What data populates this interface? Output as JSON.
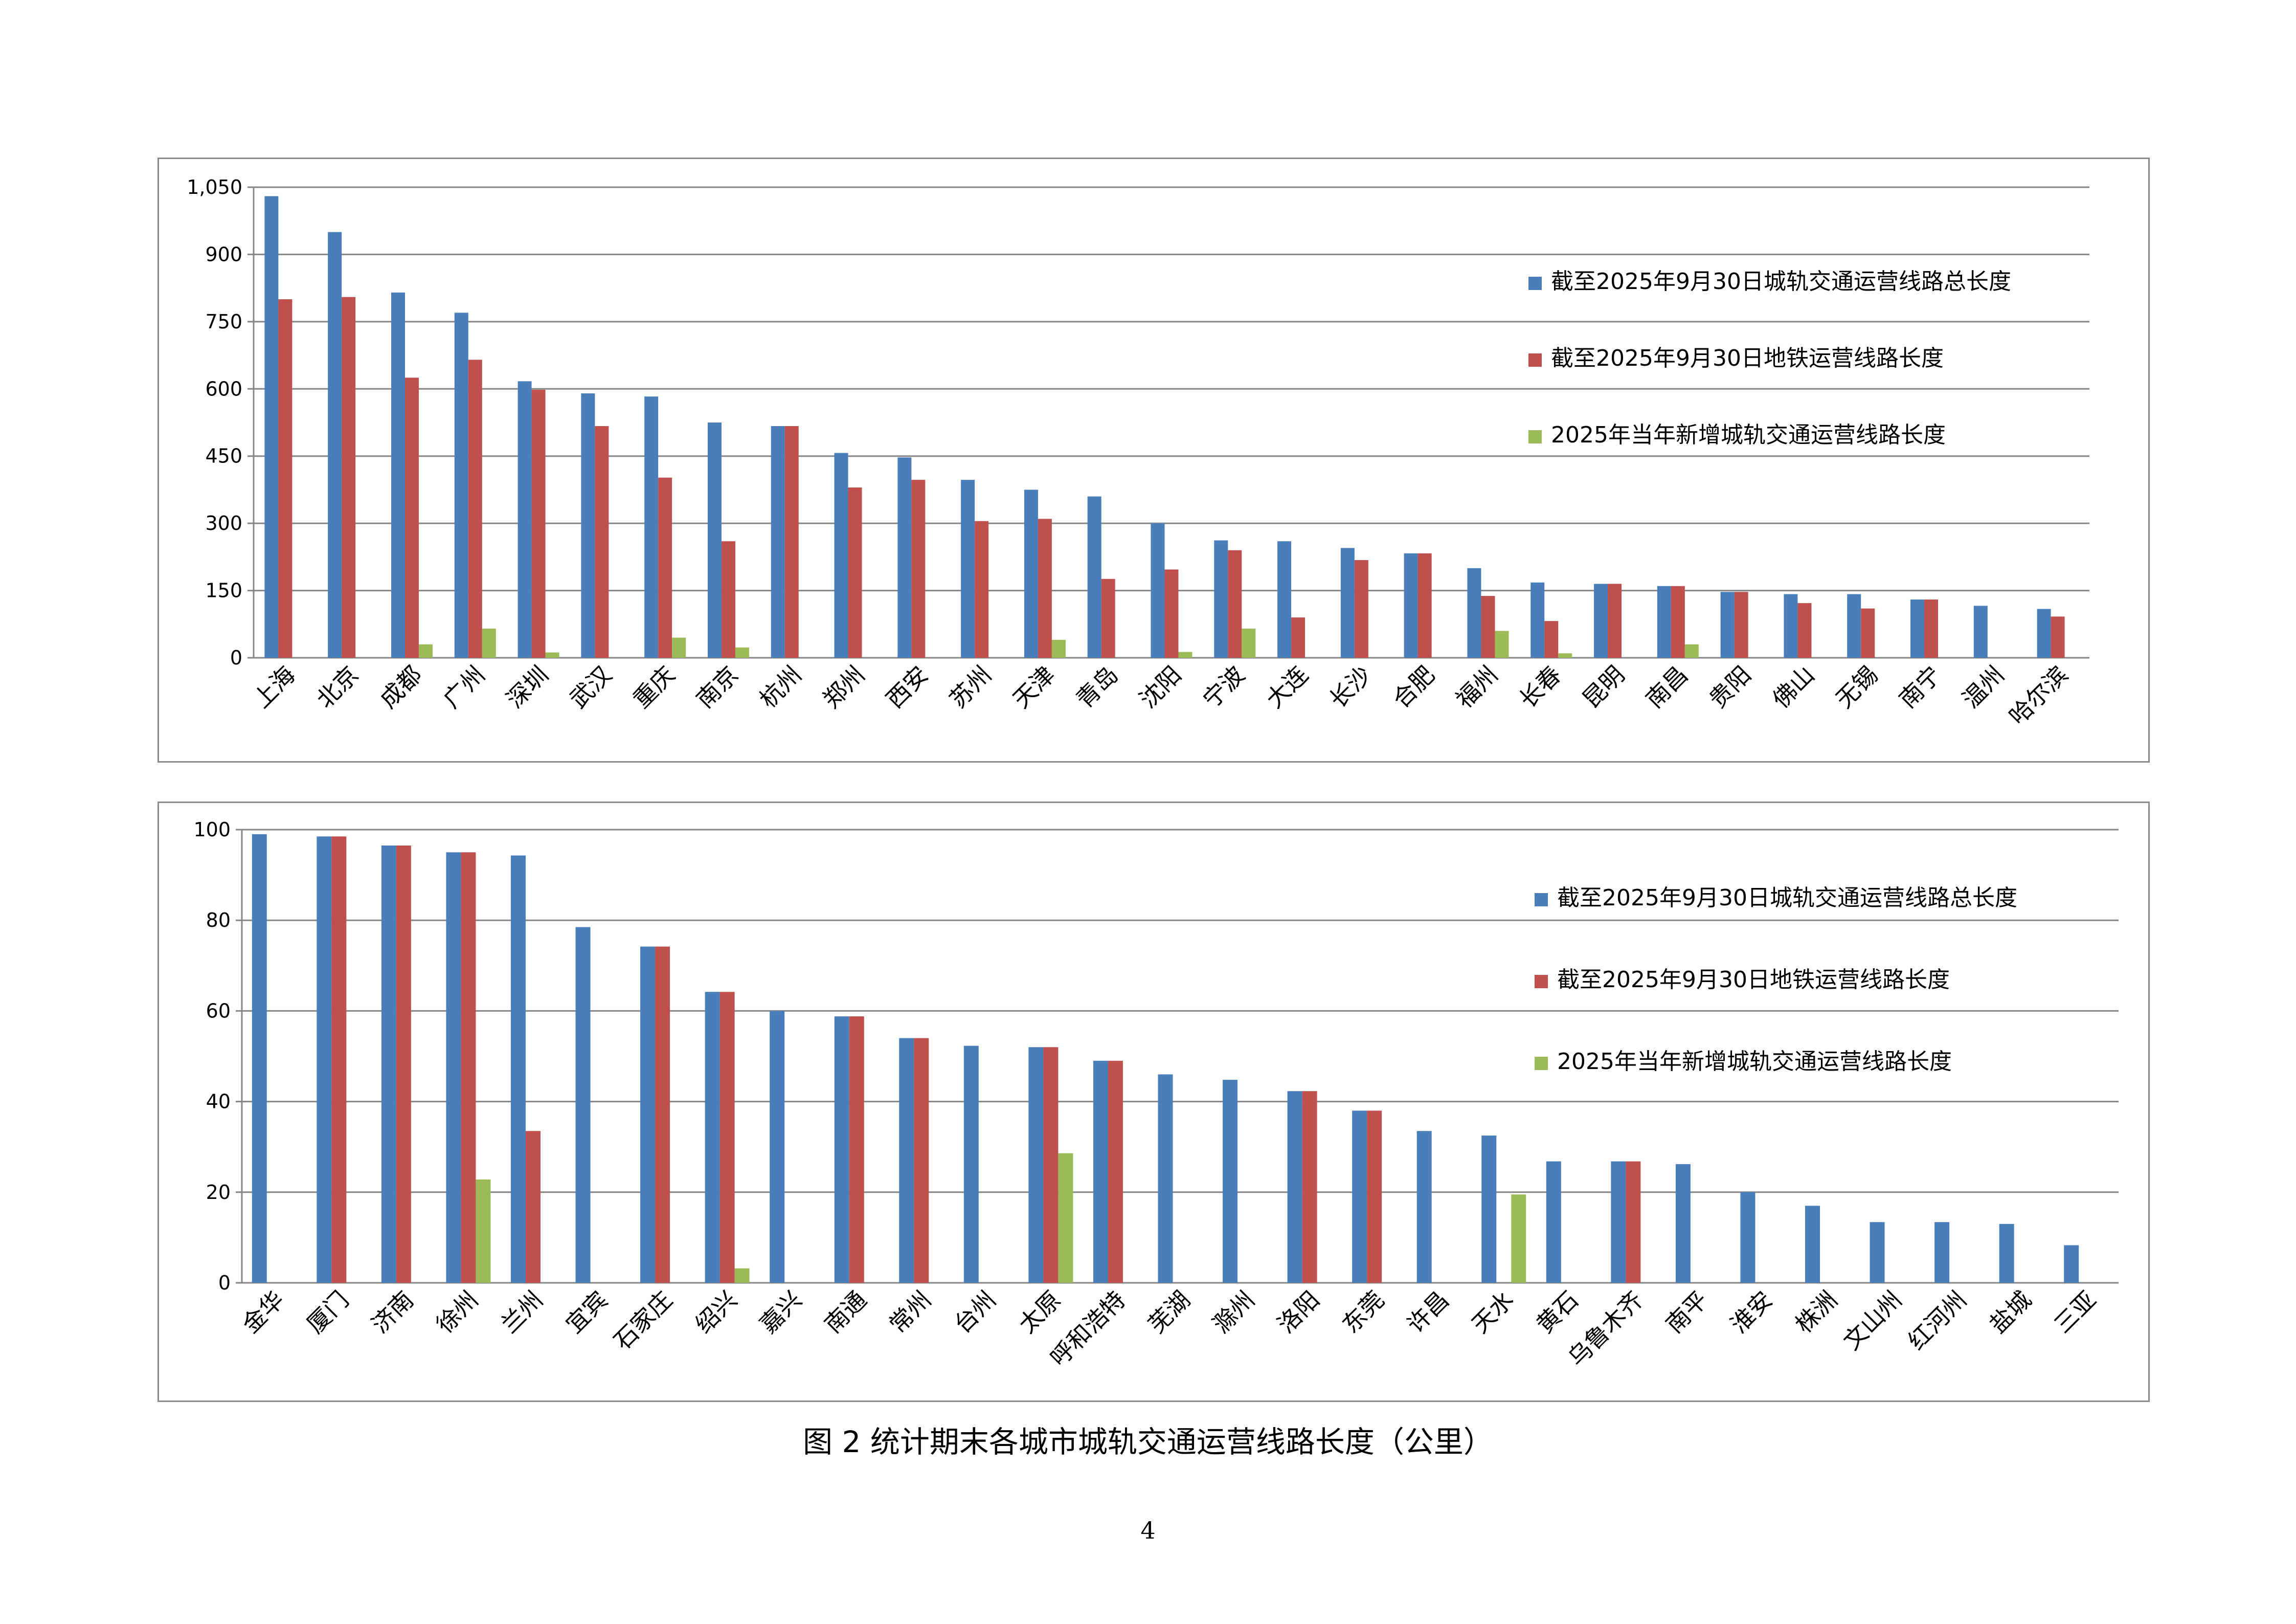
{
  "caption": "图 2  统计期末各城市城轨交通运营线路长度（公里）",
  "page_number": "4",
  "colors": {
    "series1": "#4a7ebb",
    "series2": "#c0504d",
    "series3": "#9bbb59",
    "grid": "#868686"
  },
  "chart_data": [
    {
      "type": "bar",
      "categories": [
        "上海",
        "北京",
        "成都",
        "广州",
        "深圳",
        "武汉",
        "重庆",
        "南京",
        "杭州",
        "郑州",
        "西安",
        "苏州",
        "天津",
        "青岛",
        "沈阳",
        "宁波",
        "大连",
        "长沙",
        "合肥",
        "福州",
        "长春",
        "昆明",
        "南昌",
        "贵阳",
        "佛山",
        "无锡",
        "南宁",
        "温州",
        "哈尔滨"
      ],
      "yticks": [
        "0",
        "150",
        "300",
        "450",
        "600",
        "750",
        "900",
        "1,050"
      ],
      "ylim": [
        0,
        1050
      ],
      "legend": "right",
      "series": [
        {
          "name": "截至2025年9月30日城轨交通运营线路总长度",
          "values": [
            1030,
            950,
            815,
            770,
            617,
            590,
            583,
            525,
            517,
            457,
            447,
            397,
            375,
            360,
            300,
            262,
            260,
            245,
            233,
            200,
            168,
            165,
            160,
            147,
            142,
            142,
            130,
            116,
            109
          ]
        },
        {
          "name": "截至2025年9月30日地铁运营线路长度",
          "values": [
            800,
            805,
            625,
            665,
            598,
            517,
            402,
            260,
            517,
            380,
            397,
            305,
            310,
            176,
            197,
            240,
            90,
            218,
            233,
            138,
            82,
            165,
            160,
            147,
            122,
            110,
            130,
            0,
            92
          ]
        },
        {
          "name": "2025年当年新增城轨交通运营线路长度",
          "values": [
            0,
            0,
            30,
            65,
            12,
            0,
            45,
            23,
            0,
            0,
            0,
            0,
            40,
            0,
            13,
            65,
            0,
            0,
            0,
            60,
            10,
            0,
            30,
            0,
            0,
            0,
            0,
            0,
            0
          ]
        }
      ]
    },
    {
      "type": "bar",
      "categories": [
        "金华",
        "厦门",
        "济南",
        "徐州",
        "兰州",
        "宜宾",
        "石家庄",
        "绍兴",
        "嘉兴",
        "南通",
        "常州",
        "台州",
        "太原",
        "呼和浩特",
        "芜湖",
        "滁州",
        "洛阳",
        "东莞",
        "许昌",
        "天水",
        "黄石",
        "乌鲁木齐",
        "南平",
        "淮安",
        "株洲",
        "文山州",
        "红河州",
        "盐城",
        "三亚"
      ],
      "yticks": [
        "0",
        "20",
        "40",
        "60",
        "80",
        "100"
      ],
      "ylim": [
        0,
        100
      ],
      "legend": "right",
      "series": [
        {
          "name": "截至2025年9月30日城轨交通运营线路总长度",
          "values": [
            99,
            98.5,
            96.5,
            95,
            94.3,
            78.5,
            74.2,
            64.2,
            60,
            58.8,
            54,
            52.3,
            52,
            49,
            46,
            44.8,
            42.3,
            38,
            33.5,
            32.5,
            26.8,
            26.8,
            26.2,
            20,
            17,
            13.4,
            13.4,
            13,
            8.3
          ]
        },
        {
          "name": "截至2025年9月30日地铁运营线路长度",
          "values": [
            0,
            98.5,
            96.5,
            95,
            33.5,
            0,
            74.2,
            64.2,
            0,
            58.8,
            54,
            0,
            52,
            49,
            0,
            0,
            42.3,
            38,
            0,
            0,
            0,
            26.8,
            0,
            0,
            0,
            0,
            0,
            0,
            0
          ]
        },
        {
          "name": "2025年当年新增城轨交通运营线路长度",
          "values": [
            0,
            0,
            0,
            22.8,
            0,
            0,
            0,
            3.2,
            0,
            0,
            0,
            0,
            28.6,
            0,
            0,
            0,
            0,
            0,
            0,
            19.5,
            0,
            0,
            0,
            0,
            0,
            0,
            0,
            0,
            0
          ]
        }
      ]
    }
  ]
}
